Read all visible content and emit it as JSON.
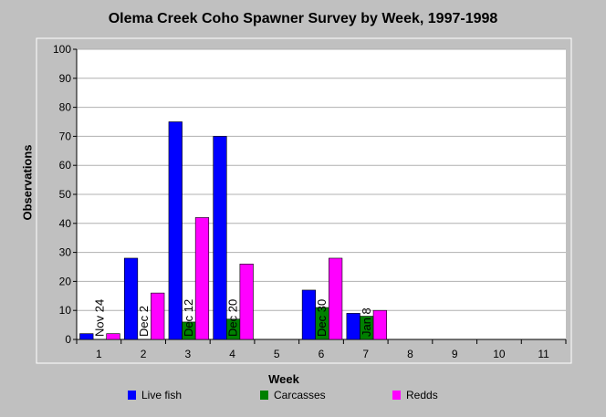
{
  "chart_data": {
    "type": "bar",
    "title": "Olema Creek Coho Spawner Survey by Week, 1997-1998",
    "xlabel": "Week",
    "ylabel": "Observations",
    "ylim": [
      0,
      100
    ],
    "yticks": [
      0,
      10,
      20,
      30,
      40,
      50,
      60,
      70,
      80,
      90,
      100
    ],
    "categories": [
      "1",
      "2",
      "3",
      "4",
      "5",
      "6",
      "7",
      "8",
      "9",
      "10",
      "11"
    ],
    "series": [
      {
        "name": "Live fish",
        "color": "#0000ff",
        "values": [
          2,
          28,
          75,
          70,
          0,
          17,
          9,
          0,
          0,
          0,
          0
        ]
      },
      {
        "name": "Carcasses",
        "color": "#008000",
        "values": [
          0,
          0,
          6,
          7,
          0,
          11,
          8,
          0,
          0,
          0,
          0
        ]
      },
      {
        "name": "Redds",
        "color": "#ff00ff",
        "values": [
          2,
          16,
          42,
          26,
          0,
          28,
          10,
          0,
          0,
          0,
          0
        ]
      }
    ],
    "date_labels": [
      "Nov 24",
      "Dec 2",
      "Dec 12",
      "Dec 20",
      "",
      "Dec 30",
      "Jan 8",
      "",
      "",
      "",
      ""
    ],
    "grid": "horizontal",
    "legend_position": "bottom"
  }
}
